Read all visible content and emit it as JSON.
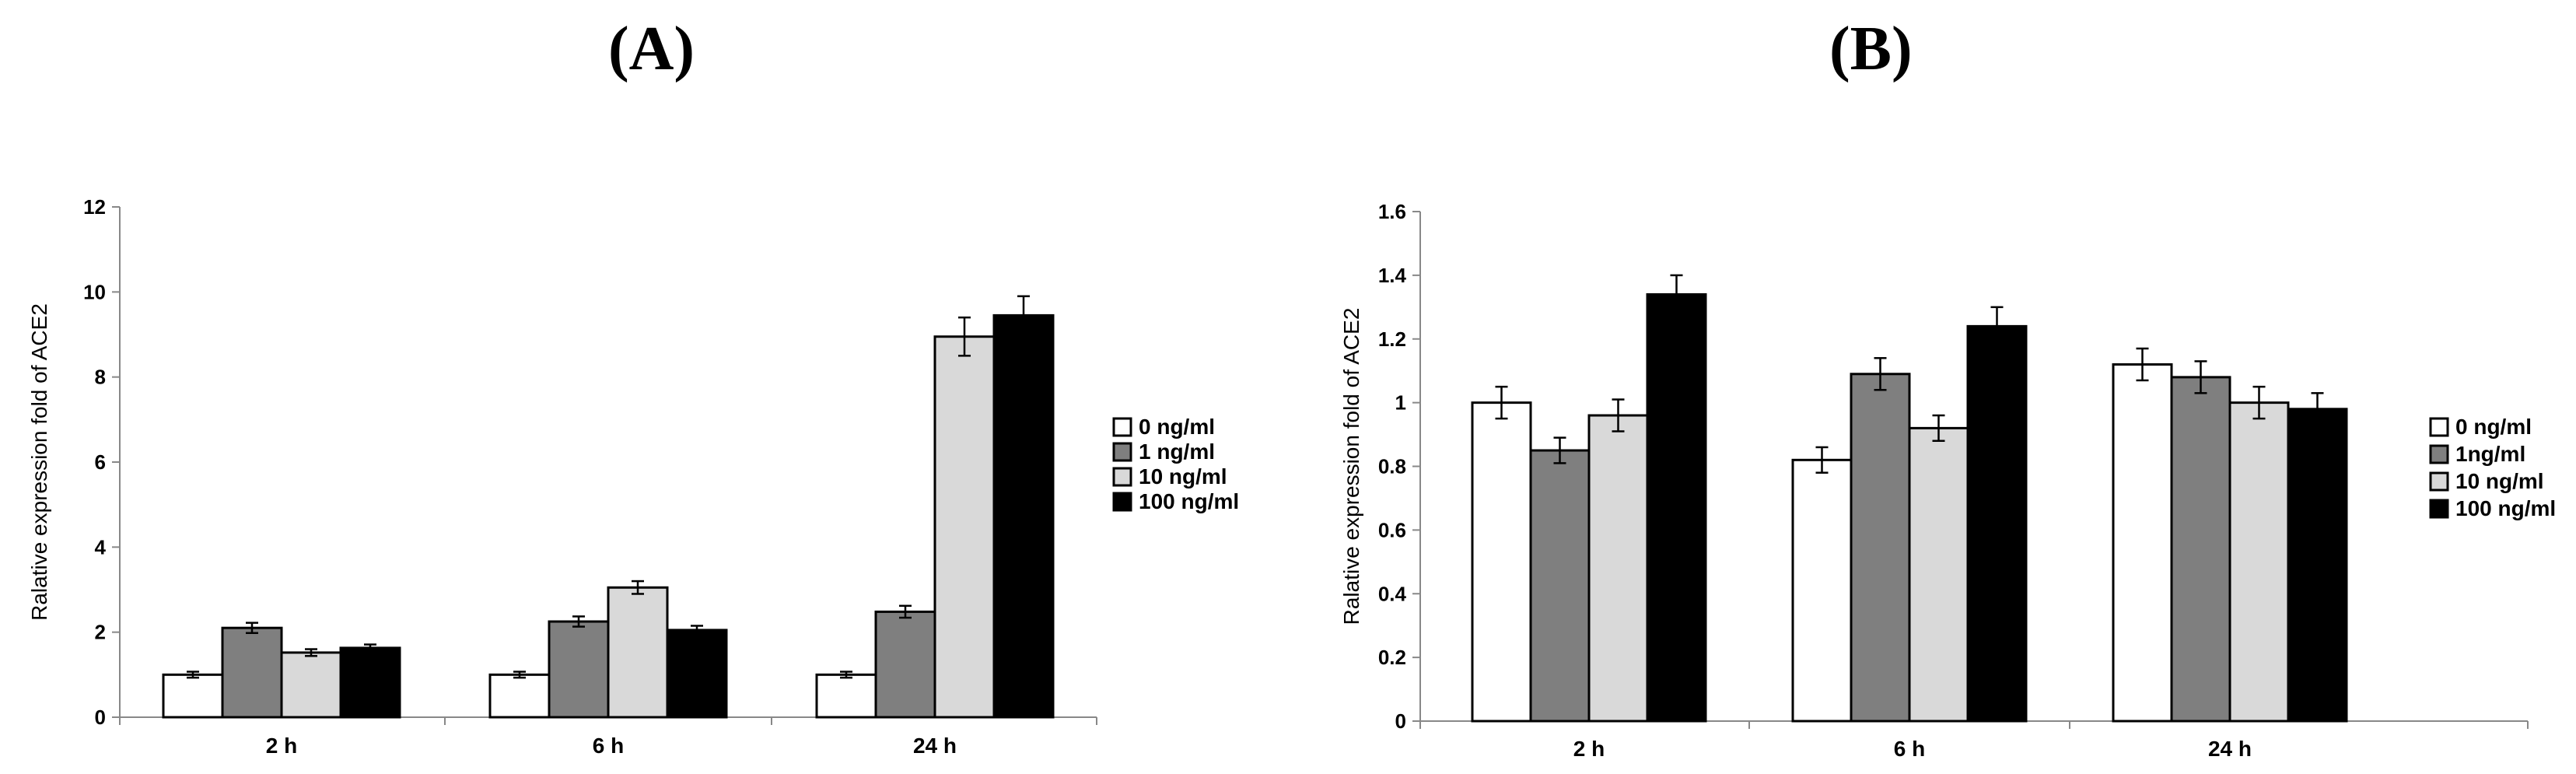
{
  "panel_labels": [
    "(A)",
    "(B)"
  ],
  "chart_data": [
    {
      "type": "bar",
      "title": "(A)",
      "xlabel": "",
      "ylabel": "Ralative expression fold of ACE2",
      "ylim": [
        0,
        12
      ],
      "yticks": [
        "0",
        "2",
        "4",
        "6",
        "8",
        "10",
        "12"
      ],
      "categories": [
        "2 h",
        "6 h",
        "24 h"
      ],
      "legend_position": "right",
      "series": [
        {
          "name": "0 ng/ml",
          "color": "#ffffff",
          "values": [
            1.0,
            1.0,
            1.0
          ],
          "errors": [
            0.07,
            0.07,
            0.07
          ]
        },
        {
          "name": "1 ng/ml",
          "color": "#7f7f7f",
          "values": [
            2.1,
            2.25,
            2.48
          ],
          "errors": [
            0.12,
            0.12,
            0.14
          ]
        },
        {
          "name": "10 ng/ml",
          "color": "#d9d9d9",
          "values": [
            1.52,
            3.05,
            8.95
          ],
          "errors": [
            0.08,
            0.15,
            0.45
          ]
        },
        {
          "name": "100 ng/ml",
          "color": "#000000",
          "values": [
            1.63,
            2.05,
            9.45
          ],
          "errors": [
            0.08,
            0.1,
            0.45
          ]
        }
      ]
    },
    {
      "type": "bar",
      "title": "(B)",
      "xlabel": "",
      "ylabel": "Ralative expression fold of ACE2",
      "ylim": [
        0,
        1.6
      ],
      "yticks": [
        "0",
        "0.2",
        "0.4",
        "0.6",
        "0.8",
        "1",
        "1.2",
        "1.4",
        "1.6"
      ],
      "categories": [
        "2 h",
        "6 h",
        "24 h"
      ],
      "legend_position": "right",
      "series": [
        {
          "name": "0 ng/ml",
          "color": "#ffffff",
          "values": [
            1.0,
            0.82,
            1.12
          ],
          "errors": [
            0.05,
            0.04,
            0.05
          ]
        },
        {
          "name": "1ng/ml",
          "color": "#7f7f7f",
          "values": [
            0.85,
            1.09,
            1.08
          ],
          "errors": [
            0.04,
            0.05,
            0.05
          ]
        },
        {
          "name": "10 ng/ml",
          "color": "#d9d9d9",
          "values": [
            0.96,
            0.92,
            1.0
          ],
          "errors": [
            0.05,
            0.04,
            0.05
          ]
        },
        {
          "name": "100 ng/ml",
          "color": "#000000",
          "values": [
            1.34,
            1.24,
            0.98
          ],
          "errors": [
            0.06,
            0.06,
            0.05
          ]
        }
      ]
    }
  ]
}
